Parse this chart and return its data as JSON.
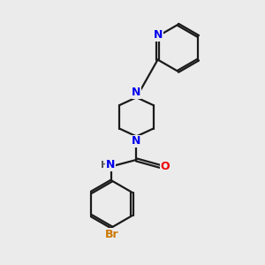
{
  "bg_color": "#ebebeb",
  "bond_color": "#1a1a1a",
  "N_color": "#0000ee",
  "O_color": "#ee0000",
  "Br_color": "#cc7700",
  "H_color": "#555555",
  "line_width": 1.6,
  "dbo": 0.07,
  "xlim": [
    0,
    10
  ],
  "ylim": [
    0,
    10
  ]
}
